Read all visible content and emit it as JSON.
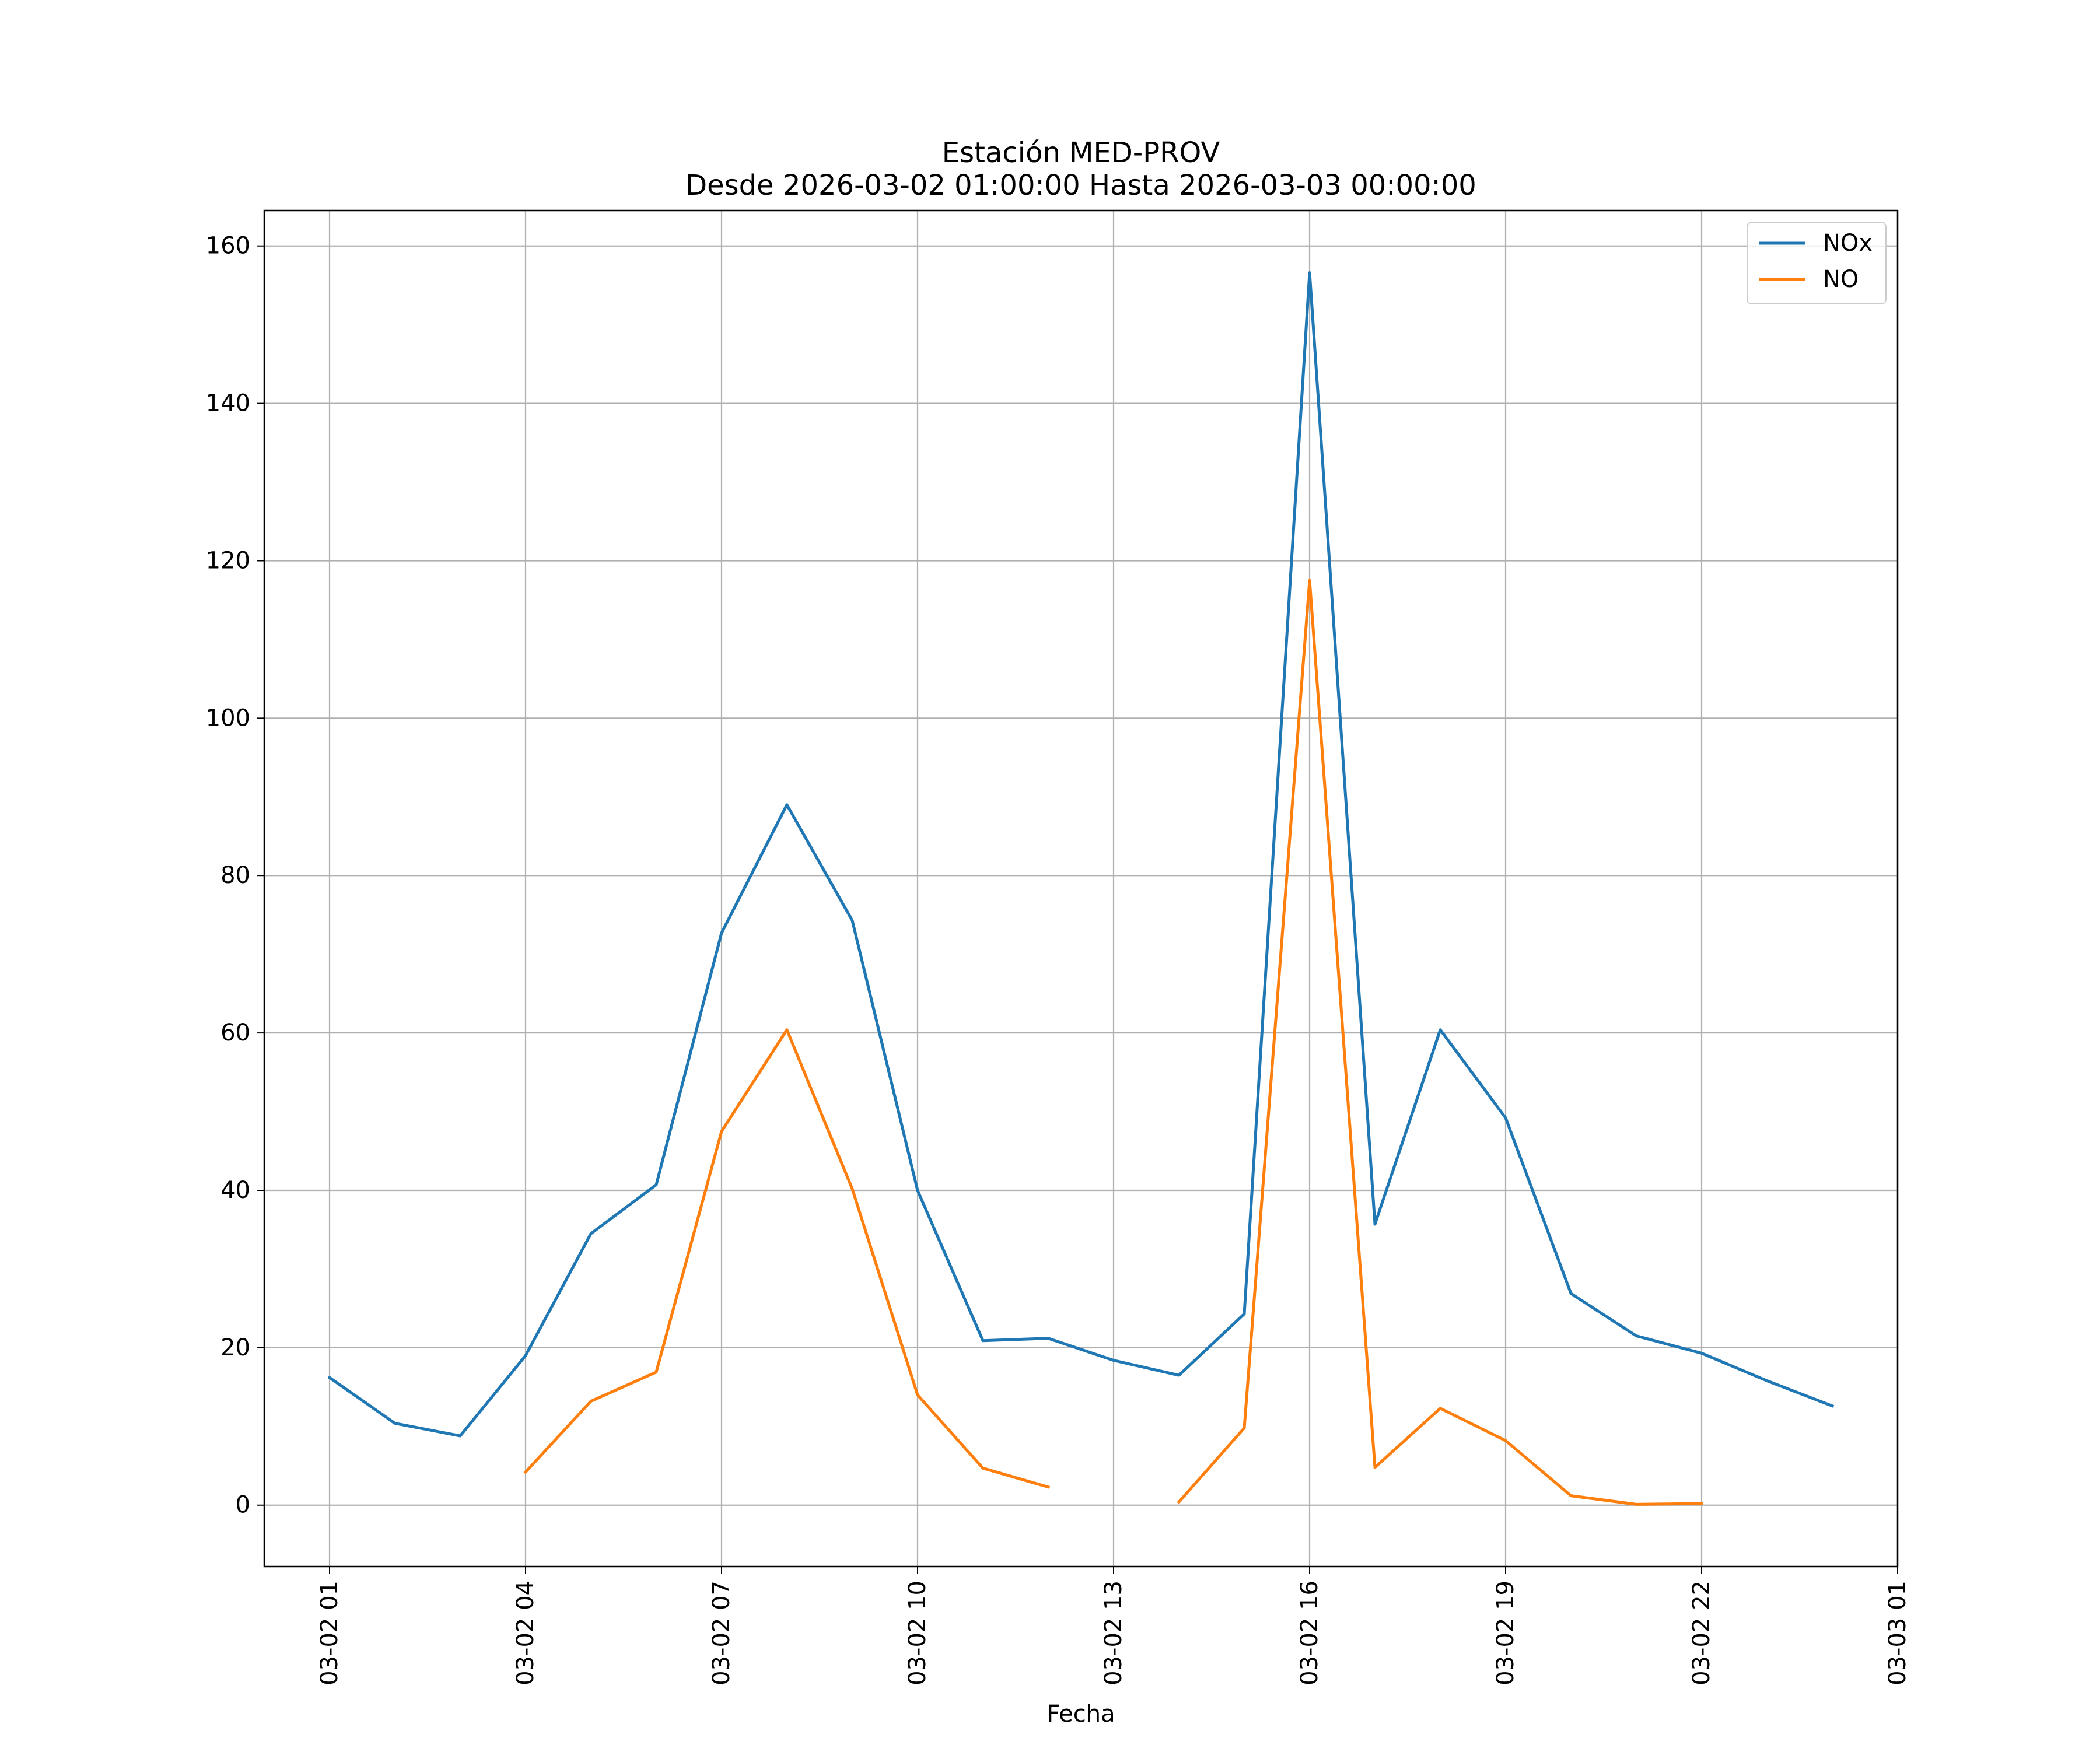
{
  "chart_data": {
    "type": "line",
    "title": "Estación MED-PROV",
    "subtitle": "Desde 2026-03-02 01:00:00 Hasta 2026-03-03 00:00:00",
    "xlabel": "Fecha",
    "ylabel": "",
    "x_range": [
      "2026-03-02 00:00",
      "2026-03-03 01:00"
    ],
    "ylim": [
      -7.8,
      164.5
    ],
    "grid": true,
    "legend_position": "top-right",
    "x_tick_labels": [
      {
        "x": "2026-03-02 01:00",
        "label": "03-02 01"
      },
      {
        "x": "2026-03-02 04:00",
        "label": "03-02 04"
      },
      {
        "x": "2026-03-02 07:00",
        "label": "03-02 07"
      },
      {
        "x": "2026-03-02 10:00",
        "label": "03-02 10"
      },
      {
        "x": "2026-03-02 13:00",
        "label": "03-02 13"
      },
      {
        "x": "2026-03-02 16:00",
        "label": "03-02 16"
      },
      {
        "x": "2026-03-02 19:00",
        "label": "03-02 19"
      },
      {
        "x": "2026-03-02 22:00",
        "label": "03-02 22"
      },
      {
        "x": "2026-03-03 01:00",
        "label": "03-03 01"
      }
    ],
    "y_ticks": [
      0,
      20,
      40,
      60,
      80,
      100,
      120,
      140,
      160
    ],
    "x": [
      "2026-03-02 01:00",
      "2026-03-02 02:00",
      "2026-03-02 03:00",
      "2026-03-02 04:00",
      "2026-03-02 05:00",
      "2026-03-02 06:00",
      "2026-03-02 07:00",
      "2026-03-02 08:00",
      "2026-03-02 09:00",
      "2026-03-02 10:00",
      "2026-03-02 11:00",
      "2026-03-02 12:00",
      "2026-03-02 13:00",
      "2026-03-02 14:00",
      "2026-03-02 15:00",
      "2026-03-02 16:00",
      "2026-03-02 17:00",
      "2026-03-02 18:00",
      "2026-03-02 19:00",
      "2026-03-02 20:00",
      "2026-03-02 21:00",
      "2026-03-02 22:00",
      "2026-03-02 23:00",
      "2026-03-03 00:00"
    ],
    "series": [
      {
        "name": "NOx",
        "color": "#1f77b4",
        "values": [
          16.2,
          10.4,
          8.8,
          19.0,
          34.5,
          40.7,
          72.7,
          89.0,
          74.3,
          40.0,
          20.9,
          21.2,
          18.4,
          16.5,
          24.3,
          156.6,
          35.7,
          60.4,
          49.2,
          26.9,
          21.5,
          19.3,
          15.8,
          12.6
        ]
      },
      {
        "name": "NO",
        "color": "#ff7f0e",
        "values": [
          null,
          null,
          null,
          4.2,
          13.2,
          16.9,
          47.5,
          60.4,
          40.2,
          14.0,
          4.7,
          2.3,
          null,
          0.4,
          9.8,
          117.5,
          4.8,
          12.3,
          8.2,
          1.2,
          0.1,
          0.2,
          null,
          null
        ]
      }
    ]
  }
}
